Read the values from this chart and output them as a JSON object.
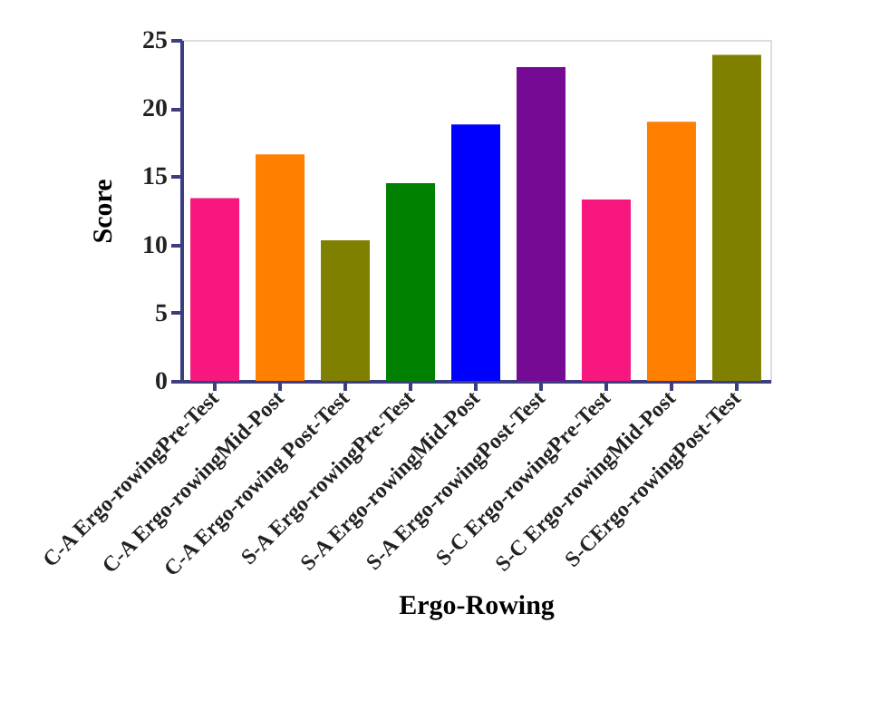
{
  "chart_data": {
    "type": "bar",
    "xlabel": "Ergo-Rowing",
    "ylabel": "Score",
    "categories": [
      "C-A Ergo-rowingPre-Test",
      "C-A Ergo-rowingMid-Post",
      "C-A Ergo-rowing Post-Test",
      "S-A Ergo-rowingPre-Test",
      "S-A Ergo-rowingMid-Post",
      "S-A Ergo-rowingPost-Test",
      "S-C Ergo-rowingPre-Test",
      "S-C Ergo-rowingMid-Post",
      "S-CErgo-rowingPost-Test"
    ],
    "values": [
      13.4,
      16.6,
      10.3,
      14.5,
      18.8,
      23.0,
      13.3,
      19.0,
      23.9
    ],
    "colors": [
      "#f7177f",
      "#ff7f00",
      "#808000",
      "#008000",
      "#0000ff",
      "#750a95",
      "#f7177f",
      "#ff7f00",
      "#808000"
    ],
    "ylim": [
      0,
      25
    ],
    "yticks": [
      0,
      5,
      10,
      15,
      20,
      25
    ],
    "grid": false
  }
}
